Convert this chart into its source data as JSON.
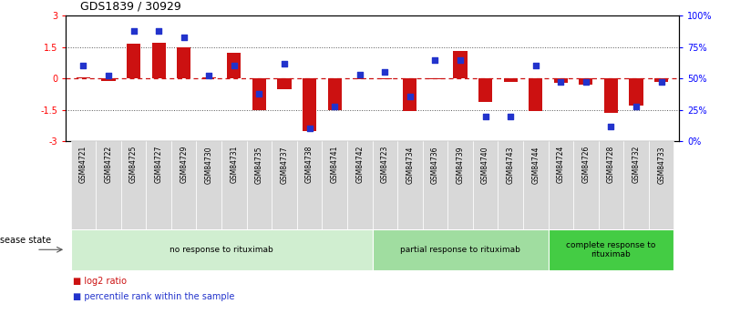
{
  "title": "GDS1839 / 30929",
  "samples": [
    "GSM84721",
    "GSM84722",
    "GSM84725",
    "GSM84727",
    "GSM84729",
    "GSM84730",
    "GSM84731",
    "GSM84735",
    "GSM84737",
    "GSM84738",
    "GSM84741",
    "GSM84742",
    "GSM84723",
    "GSM84734",
    "GSM84736",
    "GSM84739",
    "GSM84740",
    "GSM84743",
    "GSM84744",
    "GSM84724",
    "GSM84726",
    "GSM84728",
    "GSM84732",
    "GSM84733"
  ],
  "log2_ratio": [
    0.05,
    -0.1,
    1.65,
    1.7,
    1.5,
    0.05,
    1.25,
    -1.5,
    -0.5,
    -2.5,
    -1.5,
    -0.05,
    -0.05,
    -1.55,
    -0.05,
    1.3,
    -1.1,
    -0.15,
    -1.55,
    -0.2,
    -0.3,
    -1.65,
    -1.3,
    -0.15
  ],
  "percentile": [
    60,
    52,
    88,
    88,
    83,
    52,
    60,
    38,
    62,
    10,
    28,
    53,
    55,
    36,
    65,
    65,
    20,
    20,
    60,
    47,
    47,
    12,
    28,
    47
  ],
  "bar_color": "#cc1111",
  "dot_color": "#2233cc",
  "zero_line_color": "#cc1111",
  "dotted_line_color": "#555555",
  "bg_color": "#ffffff",
  "ylim": [
    -3,
    3
  ],
  "yticks": [
    -3,
    -1.5,
    0,
    1.5,
    3
  ],
  "ytick_labels": [
    "-3",
    "-1.5",
    "0",
    "1.5",
    "3"
  ],
  "y2ticks": [
    0,
    25,
    50,
    75,
    100
  ],
  "y2ticklabels": [
    "0%",
    "25%",
    "50%",
    "75%",
    "100%"
  ],
  "groups": [
    {
      "label": "no response to rituximab",
      "start": 0,
      "end": 11,
      "color": "#d0eed0"
    },
    {
      "label": "partial response to rituximab",
      "start": 12,
      "end": 18,
      "color": "#a0dda0"
    },
    {
      "label": "complete response to\nrituximab",
      "start": 19,
      "end": 23,
      "color": "#44cc44"
    }
  ],
  "legend_items": [
    {
      "label": "log2 ratio",
      "color": "#cc1111"
    },
    {
      "label": "percentile rank within the sample",
      "color": "#2233cc"
    }
  ],
  "disease_state_label": "disease state",
  "bar_width": 0.55
}
